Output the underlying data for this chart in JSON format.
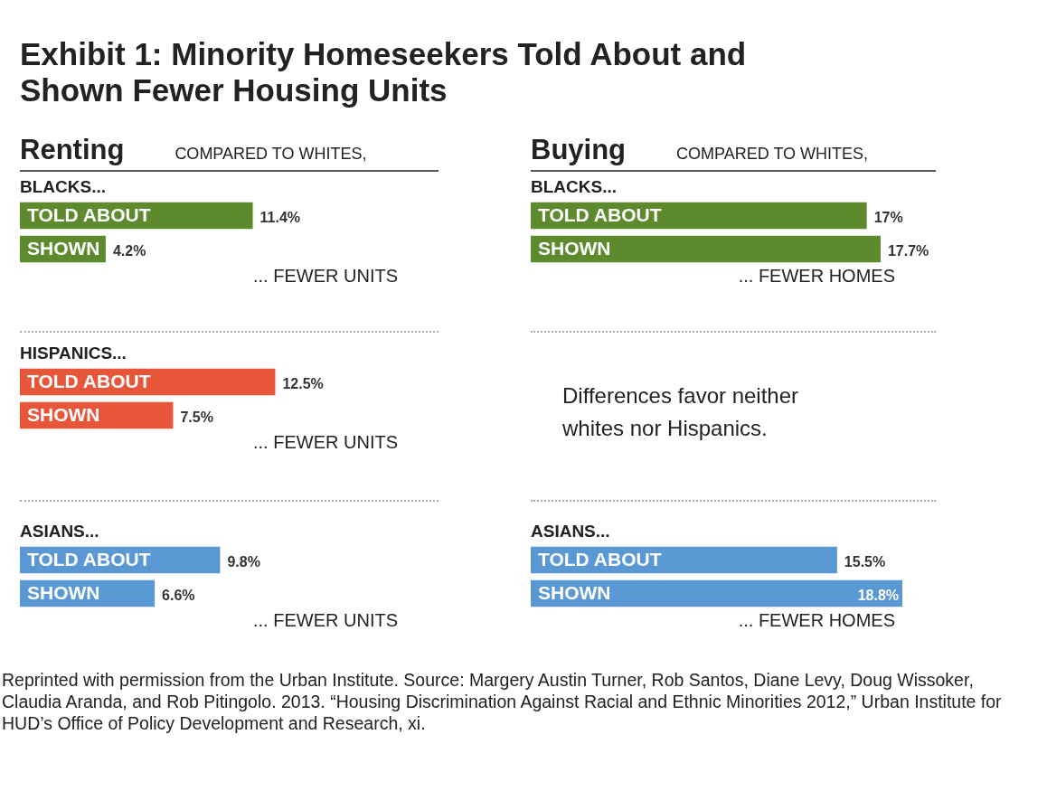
{
  "chart_data": [
    {
      "type": "other",
      "title": "Exhibit 1: Minority Homeseekers Told About and Shown Fewer Housing Units"
    },
    {
      "type": "bar",
      "orientation": "horizontal",
      "title": "Renting",
      "subtitle": "COMPARED TO WHITES,",
      "ylabel": "BLACKS...",
      "xlabel": "... FEWER UNITS",
      "categories": [
        "TOLD ABOUT",
        "SHOWN"
      ],
      "values": [
        11.4,
        4.2
      ],
      "value_labels": [
        "11.4%",
        "4.2%"
      ],
      "color": "#5e8a2e"
    },
    {
      "type": "bar",
      "orientation": "horizontal",
      "title": "Buying",
      "subtitle": "COMPARED TO WHITES,",
      "ylabel": "BLACKS...",
      "xlabel": "... FEWER HOMES",
      "categories": [
        "TOLD ABOUT",
        "SHOWN"
      ],
      "values": [
        17,
        17.7
      ],
      "value_labels": [
        "17%",
        "17.7%"
      ],
      "color": "#5e8a2e"
    },
    {
      "type": "bar",
      "orientation": "horizontal",
      "ylabel": "HISPANICS...",
      "xlabel": "... FEWER UNITS",
      "categories": [
        "TOLD ABOUT",
        "SHOWN"
      ],
      "values": [
        12.5,
        7.5
      ],
      "value_labels": [
        "12.5%",
        "7.5%"
      ],
      "color": "#e8563a"
    },
    {
      "type": "other",
      "annotations": [
        "Differences favor neither whites nor Hispanics."
      ]
    },
    {
      "type": "bar",
      "orientation": "horizontal",
      "ylabel": "ASIANS...",
      "xlabel": "... FEWER UNITS",
      "categories": [
        "TOLD ABOUT",
        "SHOWN"
      ],
      "values": [
        9.8,
        6.6
      ],
      "value_labels": [
        "9.8%",
        "6.6%"
      ],
      "color": "#5a98d4"
    },
    {
      "type": "bar",
      "orientation": "horizontal",
      "ylabel": "ASIANS...",
      "xlabel": "... FEWER HOMES",
      "categories": [
        "TOLD ABOUT",
        "SHOWN"
      ],
      "values": [
        15.5,
        18.8
      ],
      "value_labels": [
        "15.5%",
        "18.8%"
      ],
      "color": "#5a98d4"
    },
    {
      "type": "other",
      "annotations": [
        "Reprinted with permission from the Urban Institute. Source: Margery Austin Turner, Rob Santos, Diane Levy, Doug Wissoker, Claudia Aranda, and Rob Pitingolo. 2013. “Housing Discrimination Against Racial and Ethnic Minorities 2012,” Urban Institute for HUD’s Office of Policy Development and Research, xi."
      ]
    }
  ]
}
